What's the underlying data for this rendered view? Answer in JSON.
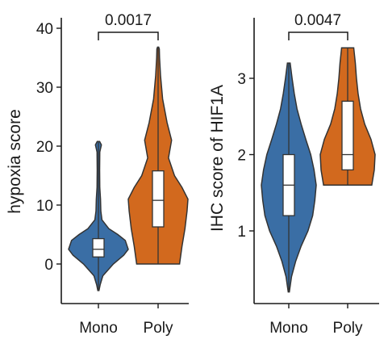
{
  "colors": {
    "Mono": "#3a6ea5",
    "Poly": "#d2691e"
  },
  "chart_data": [
    {
      "type": "violin",
      "ylabel": "hypoxia score",
      "categories": [
        "Mono",
        "Poly"
      ],
      "ylim": [
        -6.5,
        41
      ],
      "yticks": [
        0,
        10,
        20,
        30,
        40
      ],
      "pvalue": "0.0017",
      "series": [
        {
          "name": "Mono",
          "min": -4.5,
          "q1": 1.2,
          "median": 2.5,
          "q3": 4.3,
          "max": 8.5,
          "outlier_max": 20.8,
          "density": [
            [
              -4.5,
              0.02
            ],
            [
              -3.5,
              0.06
            ],
            [
              -2,
              0.15
            ],
            [
              0,
              0.5
            ],
            [
              1.5,
              0.85
            ],
            [
              2.5,
              1.0
            ],
            [
              4,
              0.9
            ],
            [
              5,
              0.65
            ],
            [
              6,
              0.35
            ],
            [
              7.5,
              0.12
            ],
            [
              9,
              0.08
            ],
            [
              11,
              0.07
            ],
            [
              13,
              0.045
            ],
            [
              16,
              0.04
            ],
            [
              19,
              0.045
            ],
            [
              20.2,
              0.1
            ],
            [
              20.8,
              0.04
            ]
          ]
        },
        {
          "name": "Poly",
          "min": 0,
          "q1": 6.3,
          "median": 10.8,
          "q3": 15.8,
          "max": 36.8,
          "density": [
            [
              0,
              0.72
            ],
            [
              3,
              0.8
            ],
            [
              6,
              0.9
            ],
            [
              9,
              0.97
            ],
            [
              11,
              1.0
            ],
            [
              13,
              0.8
            ],
            [
              15,
              0.55
            ],
            [
              18,
              0.35
            ],
            [
              21,
              0.45
            ],
            [
              24,
              0.3
            ],
            [
              28,
              0.15
            ],
            [
              32,
              0.08
            ],
            [
              35,
              0.05
            ],
            [
              36.5,
              0.04
            ],
            [
              36.8,
              0.02
            ]
          ]
        }
      ]
    },
    {
      "type": "violin",
      "ylabel": "IHC score of HIF1A",
      "categories": [
        "Mono",
        "Poly"
      ],
      "ylim": [
        0.0,
        3.7
      ],
      "yticks": [
        1,
        2,
        3
      ],
      "pvalue": "0.0047",
      "series": [
        {
          "name": "Mono",
          "min": 0.2,
          "q1": 1.2,
          "median": 1.6,
          "q3": 2.0,
          "max": 3.2,
          "density": [
            [
              0.2,
              0.02
            ],
            [
              0.4,
              0.1
            ],
            [
              0.6,
              0.25
            ],
            [
              0.8,
              0.45
            ],
            [
              1.0,
              0.7
            ],
            [
              1.2,
              0.87
            ],
            [
              1.4,
              0.95
            ],
            [
              1.6,
              1.0
            ],
            [
              1.8,
              0.92
            ],
            [
              2.0,
              0.8
            ],
            [
              2.2,
              0.62
            ],
            [
              2.4,
              0.45
            ],
            [
              2.6,
              0.3
            ],
            [
              2.8,
              0.2
            ],
            [
              3.0,
              0.12
            ],
            [
              3.2,
              0.05
            ]
          ]
        },
        {
          "name": "Poly",
          "min": 1.6,
          "q1": 1.8,
          "median": 2.0,
          "q3": 2.7,
          "max": 3.4,
          "density": [
            [
              1.6,
              0.88
            ],
            [
              1.8,
              0.97
            ],
            [
              2.0,
              1.0
            ],
            [
              2.2,
              0.85
            ],
            [
              2.4,
              0.62
            ],
            [
              2.6,
              0.47
            ],
            [
              2.8,
              0.38
            ],
            [
              3.0,
              0.32
            ],
            [
              3.2,
              0.28
            ],
            [
              3.4,
              0.22
            ]
          ]
        }
      ]
    }
  ]
}
